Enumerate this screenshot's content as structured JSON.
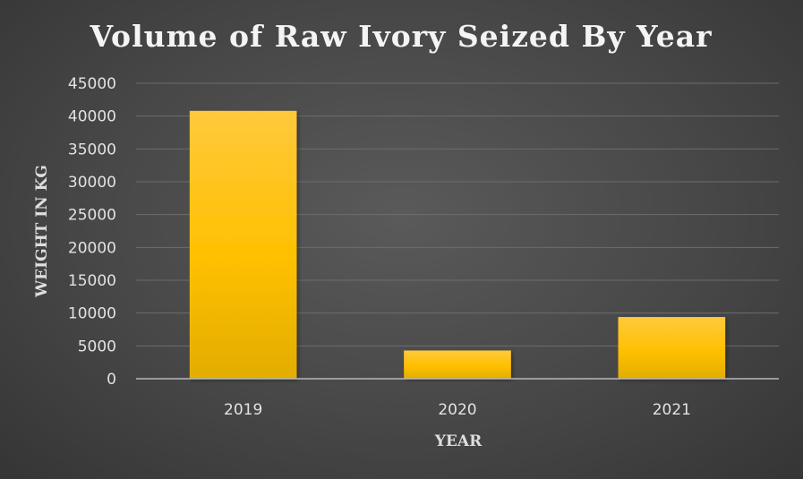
{
  "chart_data": {
    "type": "bar",
    "title": "Volume of Raw Ivory Seized By Year",
    "xlabel": "YEAR",
    "ylabel": "WEIGHT IN KG",
    "categories": [
      "2019",
      "2020",
      "2021"
    ],
    "values": [
      40800,
      4300,
      9400
    ],
    "ylim": [
      0,
      45000
    ],
    "yticks": [
      "0",
      "5000",
      "10000",
      "15000",
      "20000",
      "25000",
      "30000",
      "35000",
      "40000",
      "45000"
    ],
    "grid": true,
    "legend": "none",
    "colors": {
      "bar_top": "#ffc93c",
      "bar_mid": "#ffc000",
      "bar_bottom": "#e2ad00"
    }
  }
}
